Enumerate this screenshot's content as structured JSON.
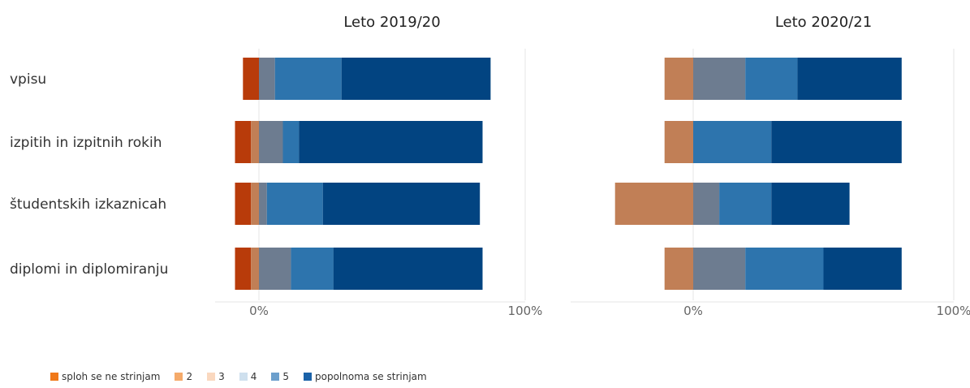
{
  "categories": [
    "vpisu",
    "izpitih in izpitnih rokih",
    "študentskih izkaznicah",
    "diplomi in diplomiranju"
  ],
  "legend": [
    {
      "label": "sploh se ne strinjam",
      "color": "#f07818"
    },
    {
      "label": "2",
      "color": "#f5aa6a"
    },
    {
      "label": "3",
      "color": "#fad8bf"
    },
    {
      "label": "4",
      "color": "#cfe0ee"
    },
    {
      "label": "5",
      "color": "#6c9fcc"
    },
    {
      "label": "popolnoma se strinjam",
      "color": "#1b62a8"
    }
  ],
  "chart_data": [
    {
      "type": "bar",
      "title": "Leto 2019/20",
      "orientation": "horizontal-diverging-stacked",
      "categories": [
        "vpisu",
        "izpitih in izpitnih rokih",
        "študentskih izkaznicah",
        "diplomi in diplomiranju"
      ],
      "xlim": [
        -15,
        100
      ],
      "xticks": [
        "0%",
        "100%"
      ],
      "series": [
        {
          "name": "sploh se ne strinjam",
          "color": "#b83b0a",
          "values": [
            -6,
            -6,
            -6,
            -6
          ]
        },
        {
          "name": "2",
          "color": "#c17f56",
          "values": [
            0,
            -3,
            -3,
            -3
          ]
        },
        {
          "name": "3",
          "color": "#6d7c90",
          "values": [
            6,
            9,
            3,
            12
          ]
        },
        {
          "name": "4",
          "color": "#2d74ad",
          "values": [
            25,
            6,
            21,
            16
          ]
        },
        {
          "name": "popolnoma se strinjam",
          "color": "#024481",
          "values": [
            56,
            69,
            59,
            56
          ]
        }
      ]
    },
    {
      "type": "bar",
      "title": "Leto 2020/21",
      "orientation": "horizontal-diverging-stacked",
      "categories": [
        "vpisu",
        "izpitih in izpitnih rokih",
        "študentskih izkaznicah",
        "diplomi in diplomiranju"
      ],
      "xlim": [
        -30,
        100
      ],
      "xticks": [
        "0%",
        "100%"
      ],
      "series": [
        {
          "name": "2",
          "color": "#c17f56",
          "values": [
            -11,
            -11,
            -30,
            -11
          ]
        },
        {
          "name": "3",
          "color": "#6d7c90",
          "values": [
            20,
            0,
            10,
            20
          ]
        },
        {
          "name": "4",
          "color": "#2d74ad",
          "values": [
            20,
            30,
            20,
            30
          ]
        },
        {
          "name": "popolnoma se strinjam",
          "color": "#024481",
          "values": [
            40,
            50,
            30,
            30
          ]
        }
      ]
    }
  ]
}
